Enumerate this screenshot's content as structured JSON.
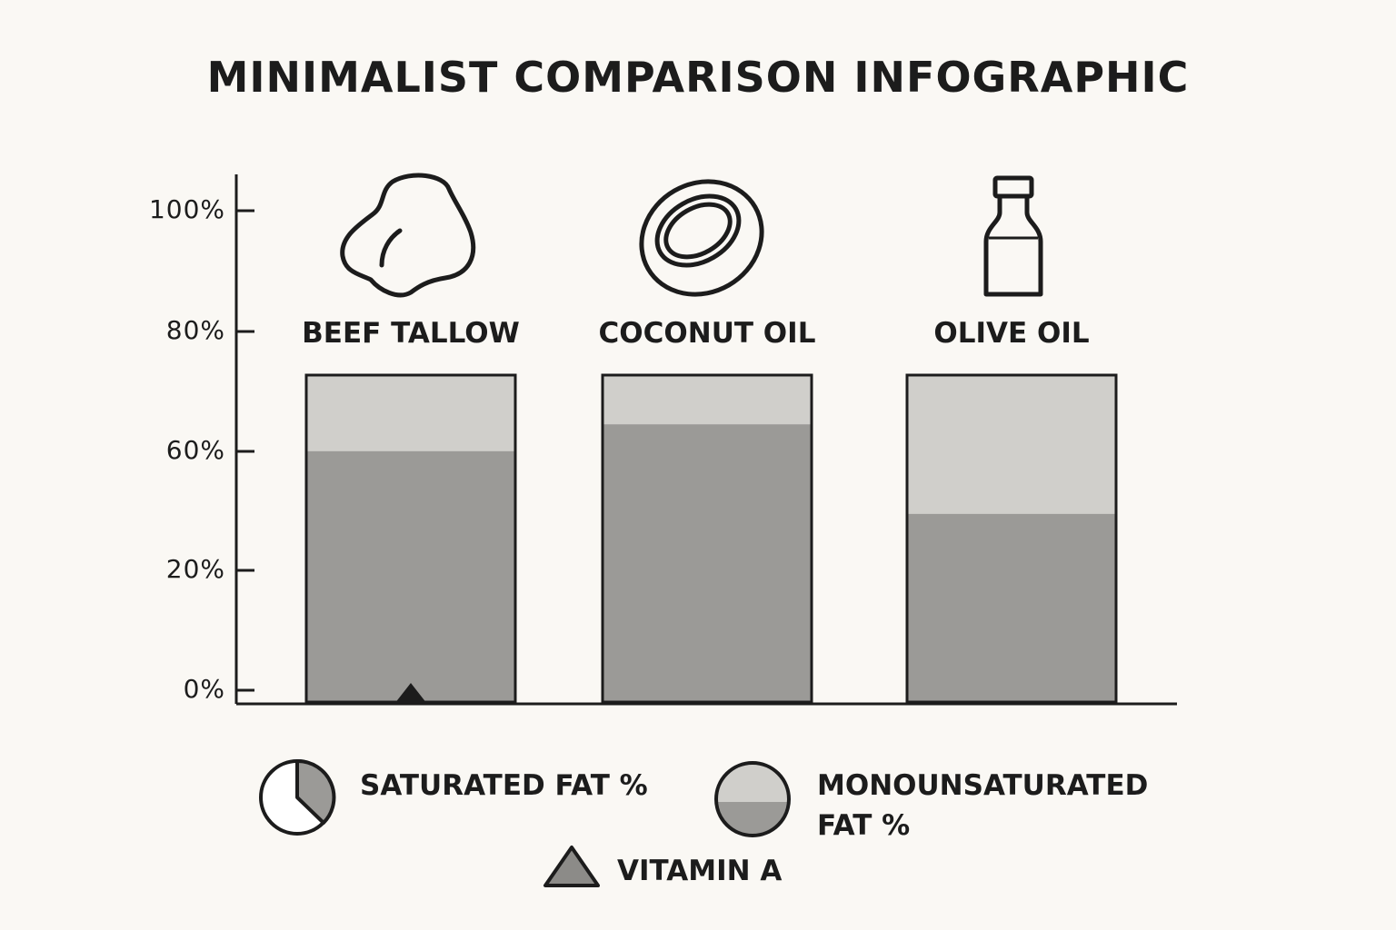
{
  "chart_data": {
    "type": "bar",
    "title": "MINIMALIST COMPARISON INFOGRAPHIC",
    "categories": [
      "BEEF TALLOW",
      "COCONUT OIL",
      "OLIVE OIL"
    ],
    "category_icons": [
      "tallow-icon",
      "coconut-icon",
      "bottle-icon"
    ],
    "y_tick_labels": [
      "100%",
      "80%",
      "60%",
      "20%",
      "0%"
    ],
    "series": [
      {
        "name": "SATURATED FAT %",
        "values": [
          56,
          62,
          42
        ],
        "color": "#9b9a97"
      },
      {
        "name": "MONOUNSATURATED FAT %",
        "values": [
          17,
          10,
          31
        ],
        "color": "#d0cfcb"
      }
    ],
    "markers": [
      {
        "name": "VITAMIN A",
        "category": "BEEF TALLOW",
        "shape": "triangle"
      }
    ],
    "legend_position": "bottom",
    "grid": false
  },
  "legend": {
    "saturated": "SATURATED FAT %",
    "mono_line1": "MONOUNSATURATED",
    "mono_line2": "FAT %",
    "vitamin": "VITAMIN A"
  },
  "colors": {
    "background": "#faf8f4",
    "ink": "#1c1c1c",
    "saturated": "#9b9a97",
    "monounsaturated": "#d0cfcb",
    "triangle": "#8c8b88"
  }
}
